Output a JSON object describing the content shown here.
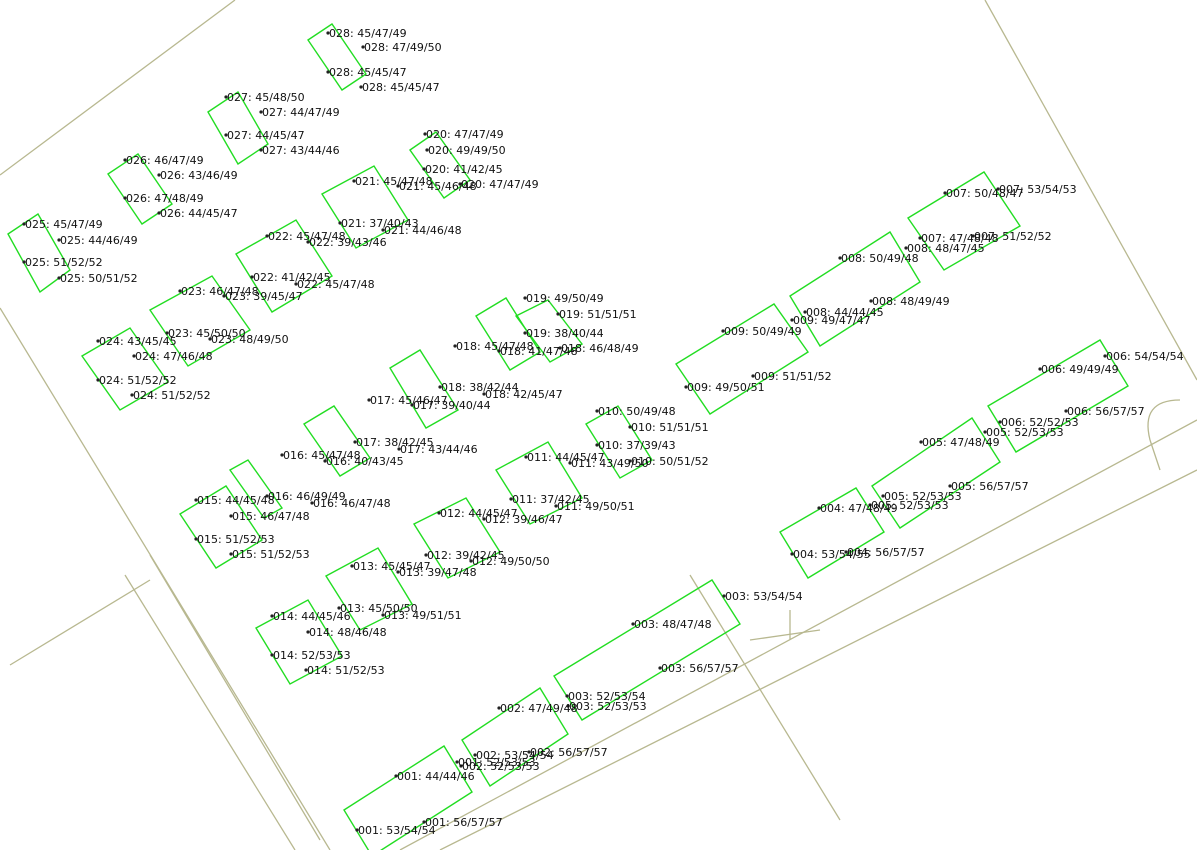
{
  "colors": {
    "building": "#22dd22",
    "road": "#b8b890",
    "text": "#111111"
  },
  "labels": [
    "028: 45/47/49",
    "028: 47/49/50",
    "028: 45/45/47",
    "028: 45/45/47",
    "027: 45/48/50",
    "027: 44/47/49",
    "027: 44/45/47",
    "027: 43/44/46",
    "026: 46/47/49",
    "026: 43/46/49",
    "026: 47/48/49",
    "026: 44/45/47",
    "025: 45/47/49",
    "025: 44/46/49",
    "025: 51/52/52",
    "025: 50/51/52",
    "020: 47/47/49",
    "020: 49/49/50",
    "020: 41/42/45",
    "020: 47/47/49",
    "021: 45/47/48",
    "021: 45/46/48",
    "021: 37/40/43",
    "021: 44/46/48",
    "022: 45/47/48",
    "022: 39/43/46",
    "022: 41/42/45",
    "022: 45/47/48",
    "023: 46/47/48",
    "023: 39/45/47",
    "023: 45/50/50",
    "023: 48/49/50",
    "024: 43/45/45",
    "024: 47/46/48",
    "024: 51/52/52",
    "024: 51/52/52",
    "019: 49/50/49",
    "019: 51/51/51",
    "019: 38/40/44",
    "018: 46/48/49",
    "018: 45/47/48",
    "018: 41/47/48",
    "018: 38/42/44",
    "017: 39/40/44",
    "018: 42/45/47",
    "017: 45/46/47",
    "017: 38/42/45",
    "017: 43/44/46",
    "016: 45/47/48",
    "016: 40/43/45",
    "016: 46/49/49",
    "016: 46/47/48",
    "015: 44/45/48",
    "015: 46/47/48",
    "015: 51/52/53",
    "015: 51/52/53",
    "010: 50/49/48",
    "010: 51/51/51",
    "010: 37/39/43",
    "010: 50/51/52",
    "011: 44/45/47",
    "011: 43/49/50",
    "011: 37/42/45",
    "011: 49/50/51",
    "012: 44/45/47",
    "012: 39/46/47",
    "012: 39/42/45",
    "012: 49/50/50",
    "013: 45/45/47",
    "013: 39/47/48",
    "013: 45/50/50",
    "013: 49/51/51",
    "014: 44/45/46",
    "014: 48/46/48",
    "014: 52/53/53",
    "014: 51/52/53",
    "007: 50/48/47",
    "007: 53/54/53",
    "007: 47/48/48",
    "007: 51/52/52",
    "008: 48/47/45",
    "008: 50/49/48",
    "008: 44/44/45",
    "008: 48/49/49",
    "009: 49/47/47",
    "009: 50/49/49",
    "009: 49/50/51",
    "009: 51/51/52",
    "006: 54/54/54",
    "006: 49/49/49",
    "006: 52/52/53",
    "006: 56/57/57",
    "005: 52/53/53",
    "005: 47/48/49",
    "005: 52/53/53",
    "005: 52/53/53",
    "005: 56/57/57",
    "004: 47/48/49",
    "004: 53/54/55",
    "004: 56/57/57",
    "003: 53/54/54",
    "003: 48/47/48",
    "003: 56/57/57",
    "003: 52/53/54",
    "003: 52/53/53",
    "002: 47/49/48",
    "002: 53/54/54",
    "002: 52/53/53",
    "002: 56/57/57",
    "001: 44/44/46",
    "001: 52/53/53",
    "001: 53/54/54",
    "001: 56/57/57"
  ]
}
